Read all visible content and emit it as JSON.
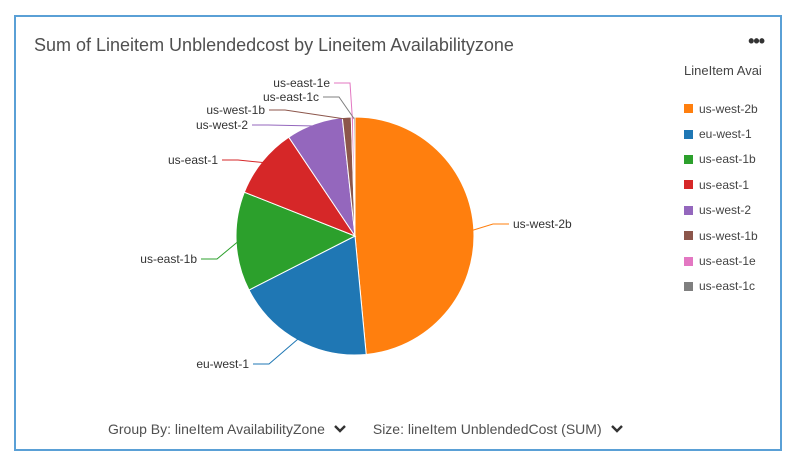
{
  "chart_title": "Sum of Lineitem Unblendedcost by Lineitem Availabilityzone",
  "more_label": "•••",
  "legend_title": "LineItem Avai",
  "footer": {
    "group_by": "Group By: lineItem AvailabilityZone",
    "size": "Size: lineItem UnblendedCost (SUM)"
  },
  "chart_data": {
    "type": "pie",
    "title": "Sum of Lineitem Unblendedcost by Lineitem Availabilityzone",
    "legend_title": "LineItem Avai",
    "legend_position": "right",
    "slices": [
      {
        "label": "us-west-2b",
        "value": 48.5,
        "color": "#ff7f0e"
      },
      {
        "label": "eu-west-1",
        "value": 19.0,
        "color": "#1f77b4"
      },
      {
        "label": "us-east-1b",
        "value": 13.5,
        "color": "#2ca02c"
      },
      {
        "label": "us-east-1",
        "value": 9.6,
        "color": "#d62728"
      },
      {
        "label": "us-west-2",
        "value": 7.7,
        "color": "#9467bd"
      },
      {
        "label": "us-west-1b",
        "value": 1.2,
        "color": "#8c564b"
      },
      {
        "label": "us-east-1e",
        "value": 0.3,
        "color": "#e377c2"
      },
      {
        "label": "us-east-1c",
        "value": 0.2,
        "color": "#7f7f7f"
      }
    ]
  }
}
